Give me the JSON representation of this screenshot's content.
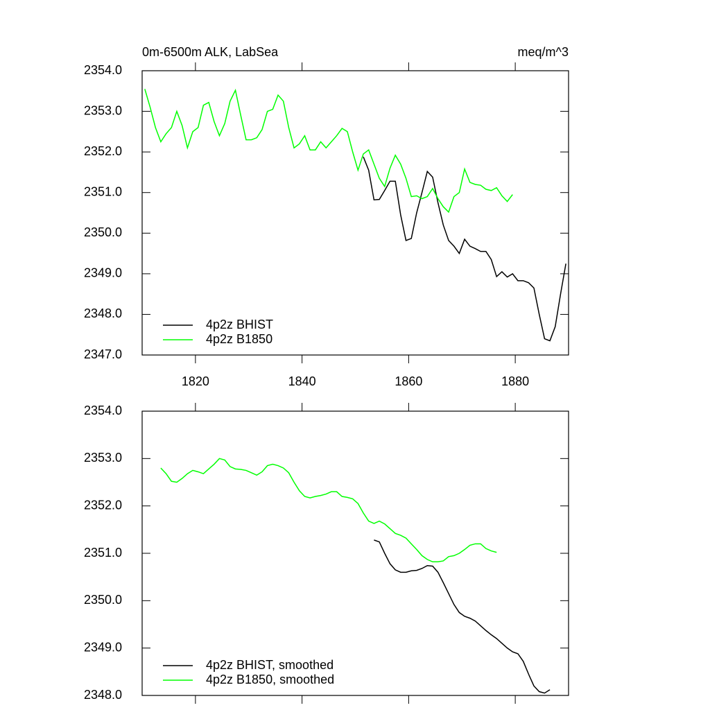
{
  "chart_data": [
    {
      "type": "line",
      "title": "0m-6500m ALK, LabSea",
      "units": "meq/m^3",
      "xlim": [
        1810,
        1890
      ],
      "xticks": [
        1820,
        1840,
        1860,
        1880
      ],
      "ylim": [
        2347,
        2354
      ],
      "yticks": [
        {
          "value": 2347,
          "label": "2347.0"
        },
        {
          "value": 2348,
          "label": "2348.0"
        },
        {
          "value": 2349,
          "label": "2349.0"
        },
        {
          "value": 2350,
          "label": "2350.0"
        },
        {
          "value": 2351,
          "label": "2351.0"
        },
        {
          "value": 2352,
          "label": "2352.0"
        },
        {
          "value": 2353,
          "label": "2353.0"
        },
        {
          "value": 2354,
          "label": "2354.0"
        }
      ],
      "legend": "lower left",
      "series": [
        {
          "name": "4p2z BHIST",
          "color": "#000000",
          "x": [
            1851.5,
            1852.5,
            1853.5,
            1854.5,
            1855.5,
            1856.5,
            1857.5,
            1858.5,
            1859.5,
            1860.5,
            1861.5,
            1862.5,
            1863.5,
            1864.5,
            1865.5,
            1866.5,
            1867.5,
            1868.5,
            1869.5,
            1870.5,
            1871.5,
            1872.5,
            1873.5,
            1874.5,
            1875.5,
            1876.5,
            1877.5,
            1878.5,
            1879.5,
            1880.5,
            1881.5,
            1882.5,
            1883.5,
            1884.5,
            1885.5,
            1886.5,
            1887.5,
            1888.5,
            1889.5
          ],
          "values": [
            2351.88,
            2351.55,
            2350.82,
            2350.83,
            2351.05,
            2351.28,
            2351.28,
            2350.45,
            2349.82,
            2349.87,
            2350.5,
            2351.0,
            2351.52,
            2351.38,
            2350.75,
            2350.2,
            2349.82,
            2349.68,
            2349.5,
            2349.85,
            2349.68,
            2349.62,
            2349.55,
            2349.55,
            2349.35,
            2348.93,
            2349.05,
            2348.92,
            2349.0,
            2348.83,
            2348.83,
            2348.78,
            2348.65,
            2348.0,
            2347.4,
            2347.35,
            2347.7,
            2348.5,
            2349.25
          ]
        },
        {
          "name": "4p2z B1850",
          "color": "#00ff00",
          "x": [
            1810.5,
            1811.5,
            1812.5,
            1813.5,
            1814.5,
            1815.5,
            1816.5,
            1817.5,
            1818.5,
            1819.5,
            1820.5,
            1821.5,
            1822.5,
            1823.5,
            1824.5,
            1825.5,
            1826.5,
            1827.5,
            1828.5,
            1829.5,
            1830.5,
            1831.5,
            1832.5,
            1833.5,
            1834.5,
            1835.5,
            1836.5,
            1837.5,
            1838.5,
            1839.5,
            1840.5,
            1841.5,
            1842.5,
            1843.5,
            1844.5,
            1845.5,
            1846.5,
            1847.5,
            1848.5,
            1849.5,
            1850.5,
            1851.5,
            1852.5,
            1853.5,
            1854.5,
            1855.5,
            1856.5,
            1857.5,
            1858.5,
            1859.5,
            1860.5,
            1861.5,
            1862.5,
            1863.5,
            1864.5,
            1865.5,
            1866.5,
            1867.5,
            1868.5,
            1869.5,
            1870.5,
            1871.5,
            1872.5,
            1873.5,
            1874.5,
            1875.5,
            1876.5,
            1877.5,
            1878.5,
            1879.5
          ],
          "values": [
            2353.55,
            2353.1,
            2352.6,
            2352.25,
            2352.45,
            2352.6,
            2353.0,
            2352.65,
            2352.1,
            2352.5,
            2352.6,
            2353.15,
            2353.22,
            2352.75,
            2352.4,
            2352.7,
            2353.25,
            2353.52,
            2352.9,
            2352.3,
            2352.3,
            2352.35,
            2352.55,
            2353.0,
            2353.05,
            2353.4,
            2353.25,
            2352.6,
            2352.1,
            2352.2,
            2352.4,
            2352.05,
            2352.05,
            2352.25,
            2352.1,
            2352.25,
            2352.4,
            2352.58,
            2352.5,
            2352.0,
            2351.55,
            2351.95,
            2352.05,
            2351.7,
            2351.35,
            2351.15,
            2351.6,
            2351.92,
            2351.7,
            2351.35,
            2350.9,
            2350.92,
            2350.85,
            2350.9,
            2351.1,
            2350.85,
            2350.65,
            2350.52,
            2350.9,
            2351.0,
            2351.58,
            2351.25,
            2351.2,
            2351.18,
            2351.08,
            2351.05,
            2351.12,
            2350.92,
            2350.78,
            2350.95
          ]
        }
      ]
    },
    {
      "type": "line",
      "xlim": [
        1810,
        1890
      ],
      "ylim": [
        2348,
        2354
      ],
      "yticks": [
        {
          "value": 2348,
          "label": "2348.0"
        },
        {
          "value": 2349,
          "label": "2349.0"
        },
        {
          "value": 2350,
          "label": "2350.0"
        },
        {
          "value": 2351,
          "label": "2351.0"
        },
        {
          "value": 2352,
          "label": "2352.0"
        },
        {
          "value": 2353,
          "label": "2353.0"
        },
        {
          "value": 2354,
          "label": "2354.0"
        }
      ],
      "legend": "lower left",
      "series": [
        {
          "name": "4p2z BHIST, smoothed",
          "color": "#000000",
          "x": [
            1853.5,
            1854.5,
            1855.5,
            1856.5,
            1857.5,
            1858.5,
            1859.5,
            1860.5,
            1861.5,
            1862.5,
            1863.5,
            1864.5,
            1865.5,
            1866.5,
            1867.5,
            1868.5,
            1869.5,
            1870.5,
            1871.5,
            1872.5,
            1873.5,
            1874.5,
            1875.5,
            1876.5,
            1877.5,
            1878.5,
            1879.5,
            1880.5,
            1881.5,
            1882.5,
            1883.5,
            1884.5,
            1885.5,
            1886.5
          ],
          "values": [
            2351.28,
            2351.24,
            2351.0,
            2350.78,
            2350.65,
            2350.6,
            2350.6,
            2350.63,
            2350.64,
            2350.68,
            2350.74,
            2350.73,
            2350.6,
            2350.38,
            2350.15,
            2349.92,
            2349.75,
            2349.67,
            2349.63,
            2349.57,
            2349.47,
            2349.37,
            2349.28,
            2349.2,
            2349.1,
            2349.0,
            2348.92,
            2348.88,
            2348.72,
            2348.45,
            2348.2,
            2348.08,
            2348.05,
            2348.12
          ]
        },
        {
          "name": "4p2z B1850, smoothed",
          "color": "#00ff00",
          "x": [
            1813.5,
            1814.5,
            1815.5,
            1816.5,
            1817.5,
            1818.5,
            1819.5,
            1820.5,
            1821.5,
            1822.5,
            1823.5,
            1824.5,
            1825.5,
            1826.5,
            1827.5,
            1828.5,
            1829.5,
            1830.5,
            1831.5,
            1832.5,
            1833.5,
            1834.5,
            1835.5,
            1836.5,
            1837.5,
            1838.5,
            1839.5,
            1840.5,
            1841.5,
            1842.5,
            1843.5,
            1844.5,
            1845.5,
            1846.5,
            1847.5,
            1848.5,
            1849.5,
            1850.5,
            1851.5,
            1852.5,
            1853.5,
            1854.5,
            1855.5,
            1856.5,
            1857.5,
            1858.5,
            1859.5,
            1860.5,
            1861.5,
            1862.5,
            1863.5,
            1864.5,
            1865.5,
            1866.5,
            1867.5,
            1868.5,
            1869.5,
            1870.5,
            1871.5,
            1872.5,
            1873.5,
            1874.5,
            1875.5,
            1876.5
          ],
          "values": [
            2352.8,
            2352.68,
            2352.52,
            2352.5,
            2352.58,
            2352.68,
            2352.75,
            2352.72,
            2352.68,
            2352.78,
            2352.88,
            2353.0,
            2352.97,
            2352.83,
            2352.78,
            2352.77,
            2352.75,
            2352.7,
            2352.65,
            2352.72,
            2352.85,
            2352.88,
            2352.85,
            2352.8,
            2352.7,
            2352.5,
            2352.32,
            2352.2,
            2352.17,
            2352.2,
            2352.22,
            2352.25,
            2352.3,
            2352.3,
            2352.2,
            2352.18,
            2352.15,
            2352.05,
            2351.85,
            2351.68,
            2351.63,
            2351.68,
            2351.62,
            2351.52,
            2351.42,
            2351.38,
            2351.32,
            2351.2,
            2351.08,
            2350.95,
            2350.87,
            2350.82,
            2350.82,
            2350.84,
            2350.93,
            2350.95,
            2351.0,
            2351.08,
            2351.17,
            2351.2,
            2351.2,
            2351.1,
            2351.05,
            2351.02
          ]
        }
      ]
    }
  ]
}
